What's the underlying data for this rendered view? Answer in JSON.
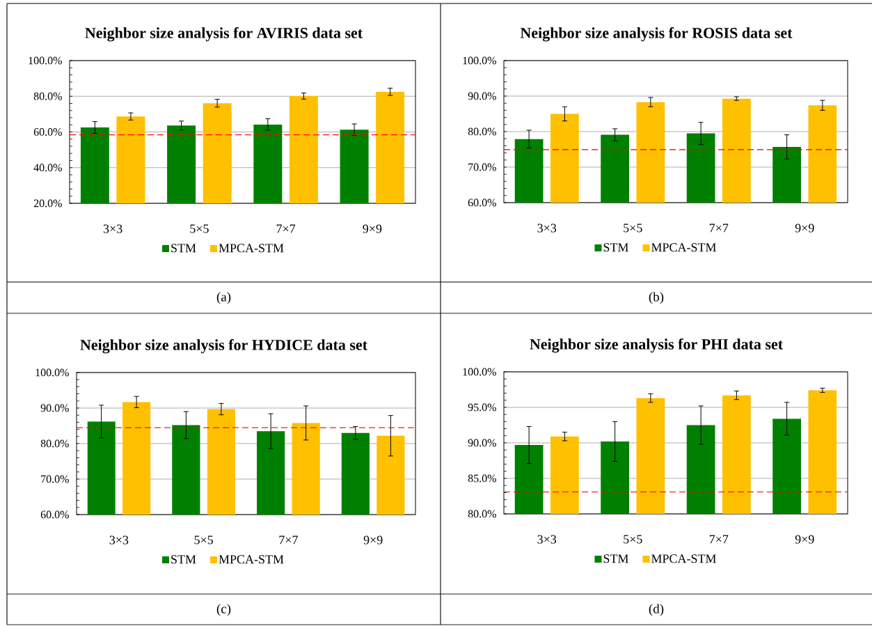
{
  "chart_data": [
    {
      "type": "bar",
      "title": "Neighbor size analysis for AVIRIS data set",
      "categories": [
        "3×3",
        "5×5",
        "7×7",
        "9×9"
      ],
      "series": [
        {
          "name": "STM",
          "color": "#008000",
          "values": [
            62.5,
            63.6,
            64.2,
            61.3
          ],
          "errors": [
            3.3,
            2.5,
            3.2,
            3.2
          ]
        },
        {
          "name": "MPCA-STM",
          "color": "#ffc000",
          "values": [
            68.7,
            76.1,
            80.1,
            82.5
          ],
          "errors": [
            2.0,
            2.2,
            1.7,
            2.0
          ]
        }
      ],
      "ylim": [
        20,
        100
      ],
      "yticks": [
        {
          "value": 20,
          "label": "20.0%"
        },
        {
          "value": 40,
          "label": "40.0%"
        },
        {
          "value": 60,
          "label": "60.0%"
        },
        {
          "value": 80,
          "label": "80.0%"
        },
        {
          "value": 100,
          "label": "100.0%"
        }
      ],
      "grid": "y",
      "legend": "bottom",
      "ref_lines": [
        {
          "axis": "y",
          "value": 58.4,
          "color": "#ff0000",
          "line_style": "dashed"
        }
      ],
      "annotations": [
        "(a)"
      ]
    },
    {
      "type": "bar",
      "title": "Neighbor size analysis for ROSIS data set",
      "categories": [
        "3×3",
        "5×5",
        "7×7",
        "9×9"
      ],
      "series": [
        {
          "name": "STM",
          "color": "#008000",
          "values": [
            77.9,
            79.1,
            79.5,
            75.7
          ],
          "errors": [
            2.5,
            1.7,
            3.1,
            3.4
          ]
        },
        {
          "name": "MPCA-STM",
          "color": "#ffc000",
          "values": [
            85.0,
            88.3,
            89.3,
            87.4
          ],
          "errors": [
            2.0,
            1.3,
            0.5,
            1.4
          ]
        }
      ],
      "ylim": [
        60,
        100
      ],
      "yticks": [
        {
          "value": 60,
          "label": "60.0%"
        },
        {
          "value": 70,
          "label": "70.0%"
        },
        {
          "value": 80,
          "label": "80.0%"
        },
        {
          "value": 90,
          "label": "90.0%"
        },
        {
          "value": 100,
          "label": "100.0%"
        }
      ],
      "grid": "y",
      "legend": "bottom",
      "ref_lines": [
        {
          "axis": "y",
          "value": 74.9,
          "color": "#ff0000",
          "line_style": "dashed"
        }
      ],
      "annotations": [
        "(b)"
      ]
    },
    {
      "type": "bar",
      "title": "Neighbor size analysis for HYDICE data set",
      "categories": [
        "3×3",
        "5×5",
        "7×7",
        "9×9"
      ],
      "series": [
        {
          "name": "STM",
          "color": "#008000",
          "values": [
            86.2,
            85.2,
            83.5,
            83.0
          ],
          "errors": [
            4.6,
            3.8,
            4.9,
            1.8
          ]
        },
        {
          "name": "MPCA-STM",
          "color": "#ffc000",
          "values": [
            91.7,
            89.7,
            85.8,
            82.2
          ],
          "errors": [
            1.6,
            1.6,
            4.8,
            5.7
          ]
        }
      ],
      "ylim": [
        60,
        100
      ],
      "yticks": [
        {
          "value": 60,
          "label": "60.0%"
        },
        {
          "value": 70,
          "label": "70.0%"
        },
        {
          "value": 80,
          "label": "80.0%"
        },
        {
          "value": 90,
          "label": "90.0%"
        },
        {
          "value": 100,
          "label": "100.0%"
        }
      ],
      "grid": "y",
      "legend": "bottom",
      "ref_lines": [
        {
          "axis": "y",
          "value": 84.5,
          "color": "#ff0000",
          "line_style": "dashed"
        }
      ],
      "annotations": [
        "(c)"
      ]
    },
    {
      "type": "bar",
      "title": "Neighbor size analysis for PHI data set",
      "categories": [
        "3×3",
        "5×5",
        "7×7",
        "9×9"
      ],
      "series": [
        {
          "name": "STM",
          "color": "#008000",
          "values": [
            89.7,
            90.2,
            92.5,
            93.4
          ],
          "errors": [
            2.6,
            2.8,
            2.7,
            2.3
          ]
        },
        {
          "name": "MPCA-STM",
          "color": "#ffc000",
          "values": [
            90.9,
            96.3,
            96.7,
            97.4
          ],
          "errors": [
            0.6,
            0.6,
            0.6,
            0.3
          ]
        }
      ],
      "ylim": [
        80,
        100
      ],
      "yticks": [
        {
          "value": 80,
          "label": "80.0%"
        },
        {
          "value": 85,
          "label": "85.0%"
        },
        {
          "value": 90,
          "label": "90.0%"
        },
        {
          "value": 95,
          "label": "95.0%"
        },
        {
          "value": 100,
          "label": "100.0%"
        }
      ],
      "grid": "y",
      "legend": "bottom",
      "ref_lines": [
        {
          "axis": "y",
          "value": 83.1,
          "color": "#ff0000",
          "line_style": "dashed"
        }
      ],
      "annotations": [
        "(d)"
      ]
    }
  ]
}
